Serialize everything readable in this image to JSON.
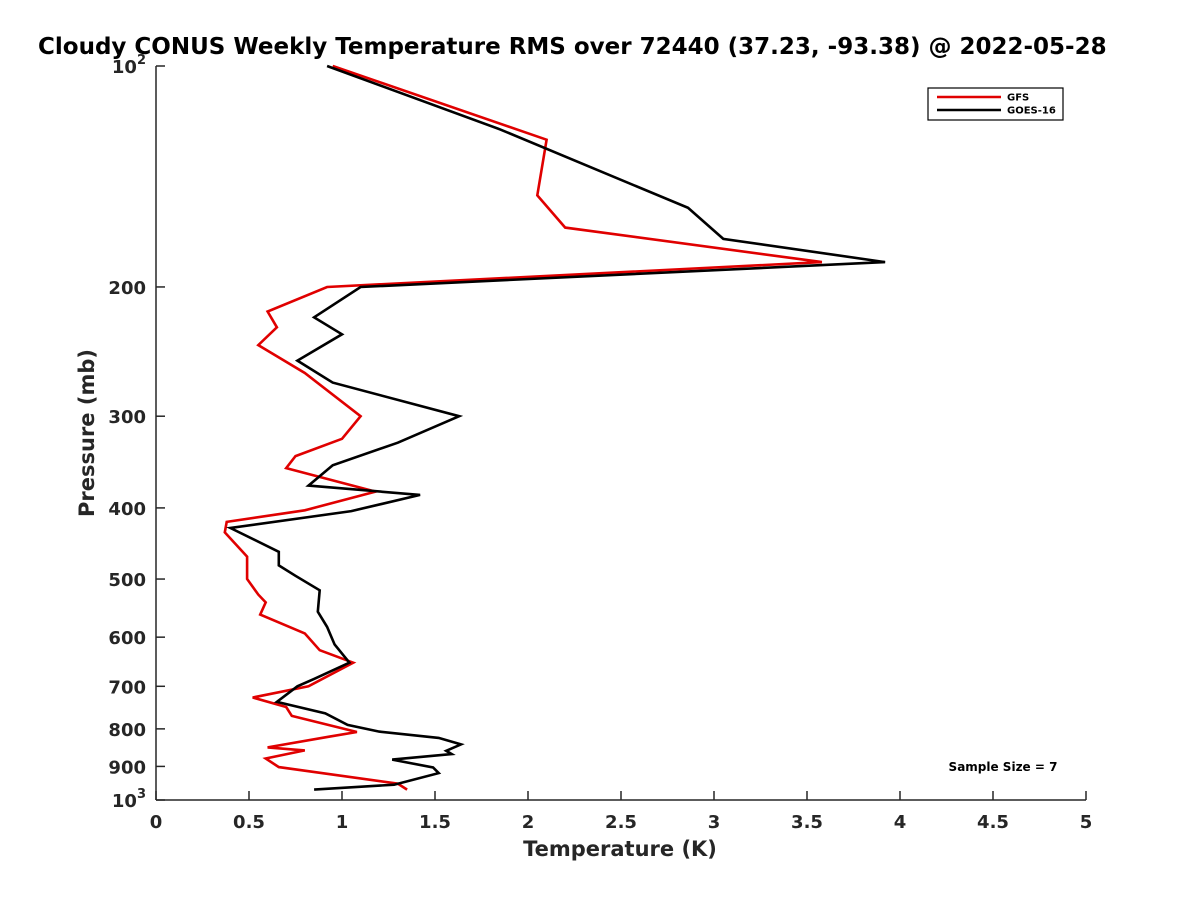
{
  "chart_data": {
    "type": "line",
    "title": "Cloudy CONUS Weekly Temperature RMS over 72440 (37.23, -93.38) @ 2022-05-28",
    "xlabel": "Temperature (K)",
    "ylabel": "Pressure (mb)",
    "xlim": [
      0,
      5
    ],
    "ylim": [
      100,
      1000
    ],
    "y_scale": "log",
    "y_reversed": true,
    "x_ticks": [
      "0",
      "0.5",
      "1",
      "1.5",
      "2",
      "2.5",
      "3",
      "3.5",
      "4",
      "4.5",
      "5"
    ],
    "y_ticks": [
      {
        "value": 100,
        "base": "10",
        "exp": "2"
      },
      {
        "value": 200,
        "label": "200"
      },
      {
        "value": 300,
        "label": "300"
      },
      {
        "value": 400,
        "label": "400"
      },
      {
        "value": 500,
        "label": "500"
      },
      {
        "value": 600,
        "label": "600"
      },
      {
        "value": 700,
        "label": "700"
      },
      {
        "value": 800,
        "label": "800"
      },
      {
        "value": 900,
        "label": "900"
      },
      {
        "value": 1000,
        "base": "10",
        "exp": "3"
      }
    ],
    "legend_placement": "top-right",
    "annotation": "Sample Size = 7",
    "series": [
      {
        "name": "GFS",
        "color": "#e00000",
        "points": [
          [
            0.95,
            100
          ],
          [
            2.1,
            126
          ],
          [
            2.05,
            150
          ],
          [
            2.2,
            166
          ],
          [
            3.58,
            185
          ],
          [
            0.92,
            200
          ],
          [
            0.6,
            216
          ],
          [
            0.65,
            227
          ],
          [
            0.55,
            240
          ],
          [
            0.8,
            262
          ],
          [
            1.1,
            300
          ],
          [
            1.0,
            322
          ],
          [
            0.75,
            340
          ],
          [
            0.7,
            353
          ],
          [
            1.18,
            380
          ],
          [
            0.8,
            403
          ],
          [
            0.38,
            418
          ],
          [
            0.37,
            432
          ],
          [
            0.49,
            466
          ],
          [
            0.49,
            500
          ],
          [
            0.55,
            525
          ],
          [
            0.59,
            538
          ],
          [
            0.56,
            559
          ],
          [
            0.8,
            593
          ],
          [
            0.88,
            625
          ],
          [
            1.06,
            650
          ],
          [
            0.82,
            700
          ],
          [
            0.52,
            725
          ],
          [
            0.7,
            747
          ],
          [
            0.73,
            768
          ],
          [
            1.08,
            808
          ],
          [
            0.93,
            820
          ],
          [
            0.6,
            848
          ],
          [
            0.8,
            856
          ],
          [
            0.59,
            878
          ],
          [
            0.66,
            902
          ],
          [
            1.3,
            950
          ],
          [
            1.35,
            968
          ]
        ]
      },
      {
        "name": "GOES-16",
        "color": "#000000",
        "points": [
          [
            0.92,
            100
          ],
          [
            1.85,
            122
          ],
          [
            2.86,
            156
          ],
          [
            3.05,
            172
          ],
          [
            3.92,
            185
          ],
          [
            1.1,
            200
          ],
          [
            0.85,
            220
          ],
          [
            1.0,
            232
          ],
          [
            0.76,
            252
          ],
          [
            0.95,
            270
          ],
          [
            1.63,
            300
          ],
          [
            1.3,
            326
          ],
          [
            0.95,
            350
          ],
          [
            0.82,
            373
          ],
          [
            1.42,
            384
          ],
          [
            1.05,
            404
          ],
          [
            0.4,
            426
          ],
          [
            0.66,
            459
          ],
          [
            0.66,
            479
          ],
          [
            0.75,
            495
          ],
          [
            0.88,
            518
          ],
          [
            0.87,
            554
          ],
          [
            0.92,
            581
          ],
          [
            0.96,
            614
          ],
          [
            1.04,
            650
          ],
          [
            0.85,
            684
          ],
          [
            0.76,
            700
          ],
          [
            0.65,
            735
          ],
          [
            0.91,
            762
          ],
          [
            1.03,
            790
          ],
          [
            1.2,
            807
          ],
          [
            1.52,
            823
          ],
          [
            1.64,
            840
          ],
          [
            1.56,
            857
          ],
          [
            1.59,
            866
          ],
          [
            1.27,
            881
          ],
          [
            1.49,
            903
          ],
          [
            1.52,
            919
          ],
          [
            1.28,
            953
          ],
          [
            0.85,
            968
          ]
        ]
      }
    ]
  }
}
